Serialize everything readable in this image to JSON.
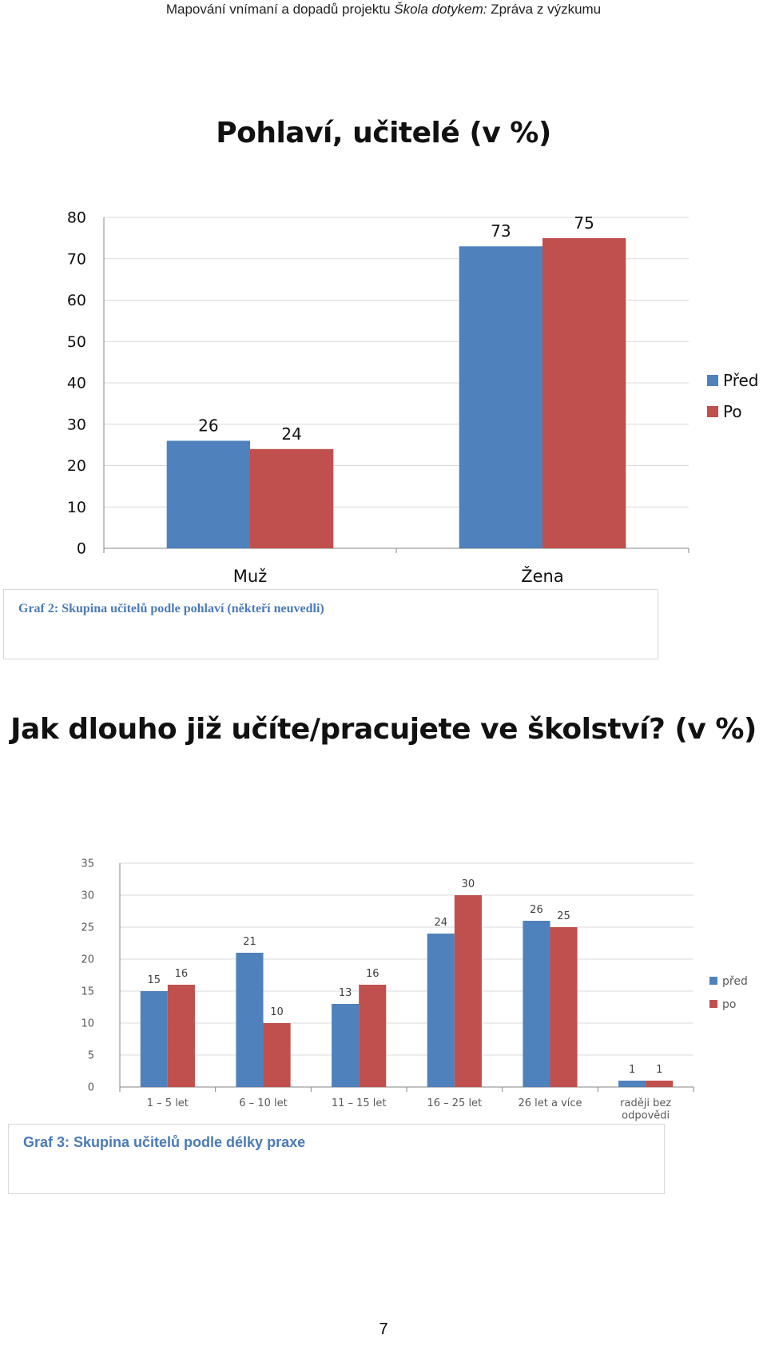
{
  "header": {
    "text_before": "Mapování vnímaní a dopadů projektu ",
    "text_italic": "Škola dotykem:",
    "text_after": " Zpráva z výzkumu"
  },
  "chart1_title": "Pohlaví, učitelé (v %)",
  "caption1": "Graf 2: Skupina učitelů podle pohlaví (někteří neuvedli)",
  "chart2_title": "Jak dlouho již učíte/pracujete ve školství? (v %)",
  "caption2": "Graf 3: Skupina učitelů podle délky praxe",
  "page_number": "7",
  "colors": {
    "blue": "#4f81bd",
    "red": "#c0504d",
    "grid": "#d9d9d9",
    "axis": "#868686"
  },
  "chart_data": [
    {
      "type": "bar",
      "title": "Pohlaví, učitelé (v %)",
      "categories": [
        "Muž",
        "Žena"
      ],
      "series": [
        {
          "name": "Před",
          "values": [
            26,
            73
          ]
        },
        {
          "name": "Po",
          "values": [
            24,
            75
          ]
        }
      ],
      "ylim": [
        0,
        80
      ],
      "yticks": [
        0,
        10,
        20,
        30,
        40,
        50,
        60,
        70,
        80
      ],
      "grid": true,
      "legend": "right",
      "data_labels": true
    },
    {
      "type": "bar",
      "title": "Jak dlouho již učíte/pracujete ve školství? (v %)",
      "categories": [
        "1 – 5 let",
        "6 – 10 let",
        "11 – 15 let",
        "16 – 25 let",
        "26 let a více",
        "raději bez odpovědi"
      ],
      "series": [
        {
          "name": "před",
          "values": [
            15,
            21,
            13,
            24,
            26,
            1
          ]
        },
        {
          "name": "po",
          "values": [
            16,
            10,
            16,
            30,
            25,
            1
          ]
        }
      ],
      "ylim": [
        0,
        35
      ],
      "yticks": [
        0,
        5,
        10,
        15,
        20,
        25,
        30,
        35
      ],
      "grid": true,
      "legend": "right",
      "data_labels": true
    }
  ]
}
